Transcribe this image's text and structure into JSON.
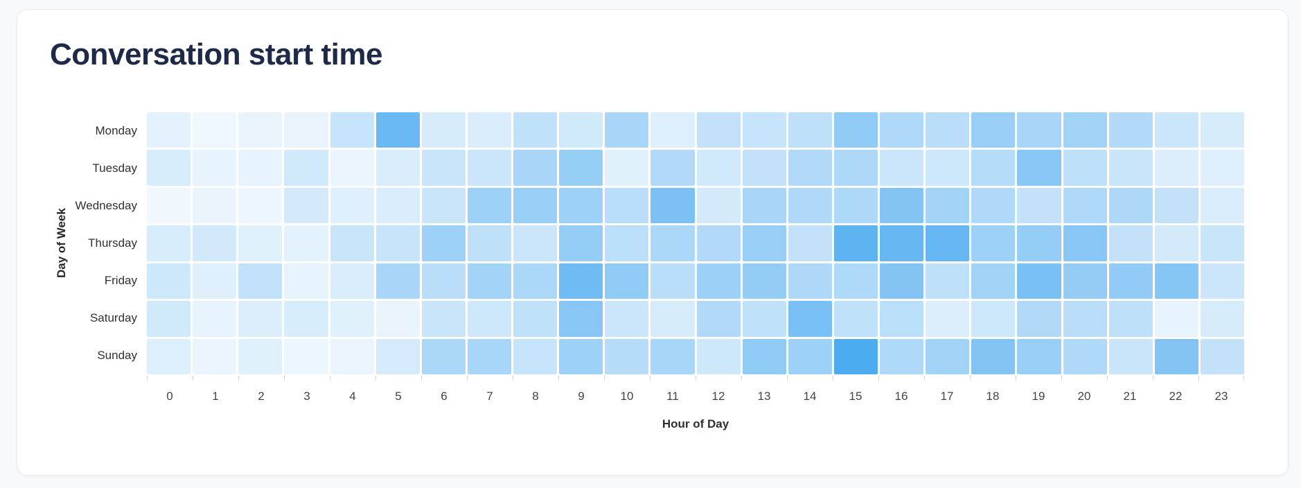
{
  "chart_data": {
    "type": "heatmap",
    "title": "Conversation start time",
    "xlabel": "Hour of Day",
    "ylabel": "Day of Week",
    "x_labels": [
      "0",
      "1",
      "2",
      "3",
      "4",
      "5",
      "6",
      "7",
      "8",
      "9",
      "10",
      "11",
      "12",
      "13",
      "14",
      "15",
      "16",
      "17",
      "18",
      "19",
      "20",
      "21",
      "22",
      "23"
    ],
    "y_labels": [
      "Monday",
      "Tuesday",
      "Wednesday",
      "Thursday",
      "Friday",
      "Saturday",
      "Sunday"
    ],
    "values_meaning": "relative intensity 0-100 estimated from cell color (no numeric labels shown in chart)",
    "series": [
      {
        "name": "Monday",
        "values": [
          10,
          4,
          7,
          7,
          28,
          82,
          18,
          16,
          32,
          22,
          45,
          14,
          30,
          28,
          33,
          60,
          42,
          35,
          55,
          45,
          50,
          40,
          25,
          18
        ]
      },
      {
        "name": "Tuesday",
        "values": [
          17,
          8,
          8,
          22,
          6,
          16,
          26,
          25,
          45,
          56,
          12,
          40,
          22,
          30,
          40,
          43,
          25,
          24,
          38,
          65,
          33,
          27,
          15,
          13
        ]
      },
      {
        "name": "Wednesday",
        "values": [
          3,
          7,
          5,
          20,
          13,
          16,
          27,
          52,
          55,
          52,
          35,
          72,
          20,
          45,
          42,
          43,
          68,
          50,
          42,
          30,
          42,
          43,
          30,
          16
        ]
      },
      {
        "name": "Thursday",
        "values": [
          17,
          21,
          12,
          10,
          27,
          28,
          52,
          33,
          25,
          57,
          34,
          44,
          40,
          55,
          30,
          90,
          85,
          86,
          52,
          57,
          65,
          30,
          20,
          27
        ]
      },
      {
        "name": "Friday",
        "values": [
          24,
          13,
          31,
          9,
          16,
          45,
          35,
          50,
          44,
          80,
          60,
          35,
          53,
          58,
          43,
          42,
          68,
          33,
          50,
          74,
          58,
          59,
          66,
          25
        ]
      },
      {
        "name": "Saturday",
        "values": [
          22,
          8,
          15,
          17,
          12,
          7,
          26,
          24,
          32,
          65,
          25,
          18,
          40,
          32,
          74,
          32,
          34,
          15,
          24,
          40,
          35,
          33,
          8,
          18
        ]
      },
      {
        "name": "Sunday",
        "values": [
          14,
          6,
          12,
          5,
          6,
          19,
          44,
          46,
          28,
          52,
          38,
          46,
          24,
          60,
          52,
          100,
          42,
          50,
          68,
          55,
          42,
          26,
          68,
          30
        ]
      }
    ],
    "color_min": "#f5fafe",
    "color_max": "#4dabf0",
    "legend_position": "none",
    "grid_style": "white gaps between cells, tick marks at column boundaries below x axis"
  }
}
